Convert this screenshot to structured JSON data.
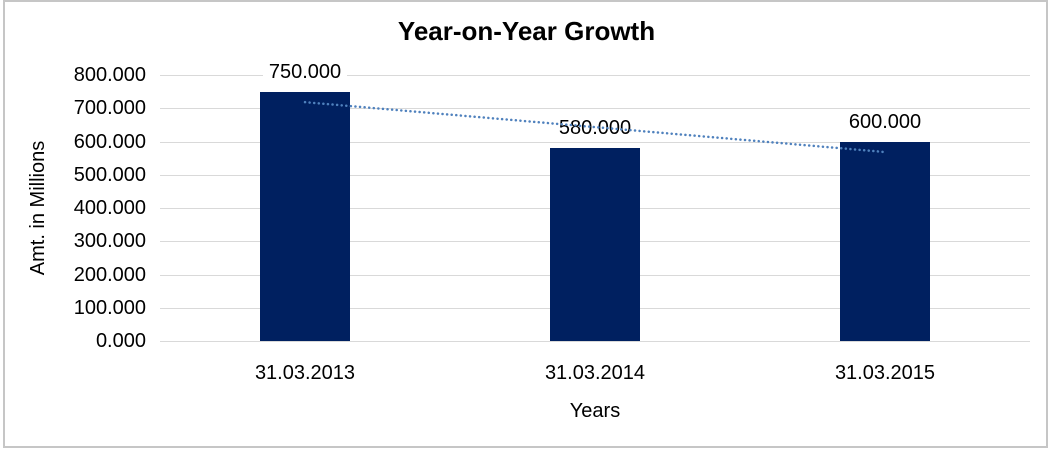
{
  "chart_data": {
    "type": "bar",
    "title": "Year-on-Year Growth",
    "xlabel": "Years",
    "ylabel": "Amt. in Millions",
    "categories": [
      "31.03.2013",
      "31.03.2014",
      "31.03.2015"
    ],
    "values": [
      750,
      580,
      600
    ],
    "data_labels": [
      "750.000",
      "580.000",
      "600.000"
    ],
    "y_ticks": [
      {
        "value": 800,
        "label": "800.000"
      },
      {
        "value": 700,
        "label": "700.000"
      },
      {
        "value": 600,
        "label": "600.000"
      },
      {
        "value": 500,
        "label": "500.000"
      },
      {
        "value": 400,
        "label": "400.000"
      },
      {
        "value": 300,
        "label": "300.000"
      },
      {
        "value": 200,
        "label": "200.000"
      },
      {
        "value": 100,
        "label": "100.000"
      },
      {
        "value": 0,
        "label": "0.000"
      }
    ],
    "ylim": [
      0,
      800
    ],
    "grid": "horizontal",
    "legend": "none",
    "trendline": {
      "type": "linear",
      "style": "dotted",
      "start_value": 718.3,
      "end_value": 568.3
    },
    "colors": {
      "bar": "#002060",
      "trendline": "#4f81bd",
      "gridline": "#d9d9d9",
      "border": "#c6c6c6",
      "text": "#000000"
    }
  }
}
